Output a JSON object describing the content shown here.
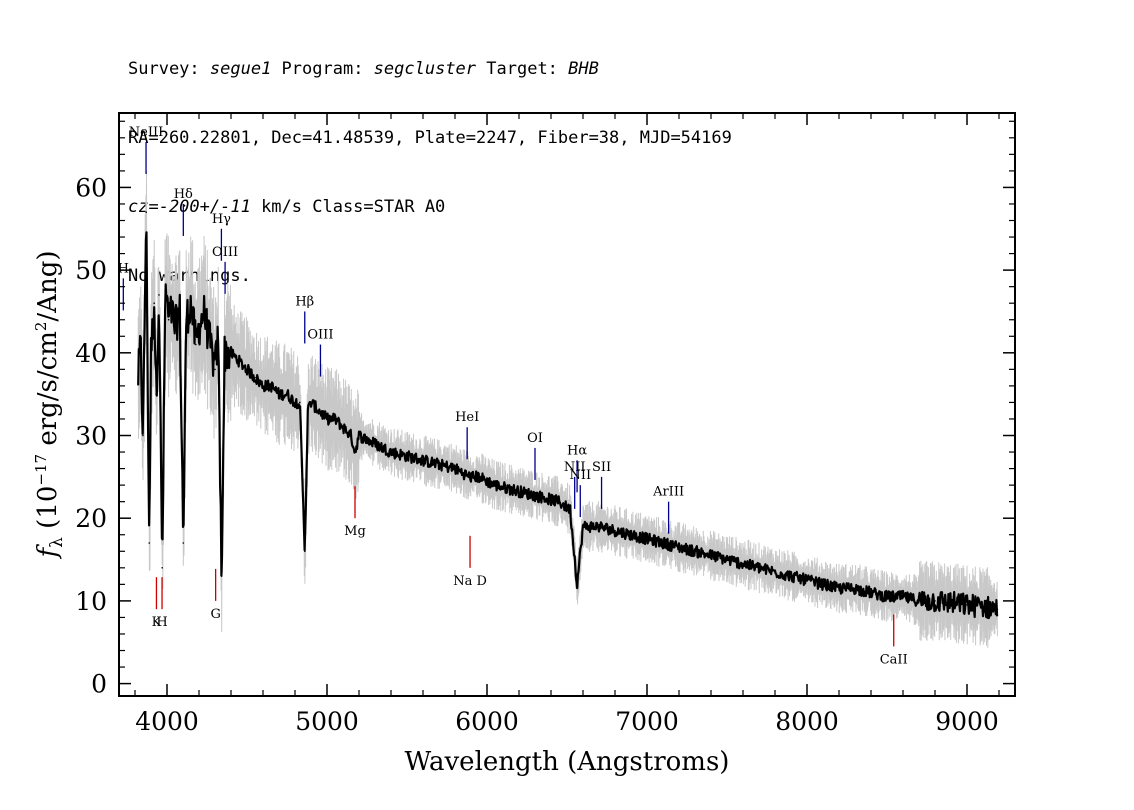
{
  "header": {
    "line1": {
      "survey_label": "Survey: ",
      "survey": "segue1",
      "program_label": " Program: ",
      "program": "segcluster",
      "target_label": " Target: ",
      "target": "BHB"
    },
    "line2": "RA=260.22801, Dec=41.48539, Plate=2247, Fiber=38, MJD=54169",
    "line3": {
      "cz": "cz=-200+/-11",
      "rest": " km/s Class=STAR A0"
    },
    "line4": "No warnings."
  },
  "chart_data": {
    "type": "line",
    "xlabel": "Wavelength (Angstroms)",
    "ylabel": "f_λ (10^-17 erg/s/cm²/Ang)",
    "xlim": [
      3700,
      9300
    ],
    "ylim": [
      -1.5,
      69
    ],
    "x_ticks": [
      4000,
      5000,
      6000,
      7000,
      8000,
      9000
    ],
    "y_ticks": [
      0,
      10,
      20,
      30,
      40,
      50,
      60
    ],
    "grid": false,
    "colors": {
      "spectrum": "#000000",
      "noise": "#c8c8c8",
      "emission": "#00008b",
      "absorption": "#cc0000"
    },
    "series": [
      {
        "values": [
          [
            3820,
            37
          ],
          [
            3835,
            41
          ],
          [
            3850,
            30
          ],
          [
            3870,
            57
          ],
          [
            3889,
            17
          ],
          [
            3900,
            40
          ],
          [
            3920,
            46
          ],
          [
            3933,
            35
          ],
          [
            3950,
            47
          ],
          [
            3970,
            14
          ],
          [
            3990,
            48
          ],
          [
            4010,
            44
          ],
          [
            4030,
            45
          ],
          [
            4050,
            43
          ],
          [
            4080,
            45
          ],
          [
            4102,
            17
          ],
          [
            4120,
            44
          ],
          [
            4150,
            46
          ],
          [
            4180,
            41
          ],
          [
            4200,
            43
          ],
          [
            4230,
            45
          ],
          [
            4260,
            42
          ],
          [
            4300,
            38
          ],
          [
            4320,
            42
          ],
          [
            4341,
            13
          ],
          [
            4360,
            40
          ],
          [
            4400,
            40
          ],
          [
            4450,
            39
          ],
          [
            4500,
            38
          ],
          [
            4550,
            37
          ],
          [
            4600,
            36
          ],
          [
            4650,
            36
          ],
          [
            4700,
            35
          ],
          [
            4750,
            35
          ],
          [
            4800,
            34
          ],
          [
            4830,
            34
          ],
          [
            4861,
            16
          ],
          [
            4880,
            33
          ],
          [
            4900,
            34
          ],
          [
            4950,
            33
          ],
          [
            5000,
            32
          ],
          [
            5050,
            32
          ],
          [
            5100,
            31
          ],
          [
            5150,
            30
          ],
          [
            5175,
            28
          ],
          [
            5200,
            30
          ],
          [
            5300,
            29
          ],
          [
            5400,
            28
          ],
          [
            5500,
            27.5
          ],
          [
            5600,
            27
          ],
          [
            5700,
            26.5
          ],
          [
            5800,
            26
          ],
          [
            5893,
            25
          ],
          [
            5950,
            25
          ],
          [
            6050,
            24
          ],
          [
            6150,
            23.5
          ],
          [
            6250,
            23
          ],
          [
            6350,
            22.5
          ],
          [
            6450,
            22
          ],
          [
            6520,
            21
          ],
          [
            6563,
            12
          ],
          [
            6600,
            19
          ],
          [
            6700,
            19
          ],
          [
            6800,
            18.5
          ],
          [
            6900,
            18
          ],
          [
            7000,
            17.5
          ],
          [
            7100,
            17
          ],
          [
            7200,
            16.5
          ],
          [
            7300,
            16
          ],
          [
            7400,
            15.5
          ],
          [
            7500,
            15
          ],
          [
            7600,
            14.5
          ],
          [
            7700,
            14
          ],
          [
            7800,
            13.5
          ],
          [
            7900,
            13
          ],
          [
            8000,
            12.5
          ],
          [
            8100,
            12
          ],
          [
            8200,
            11.5
          ],
          [
            8300,
            11.5
          ],
          [
            8400,
            11
          ],
          [
            8500,
            10.5
          ],
          [
            8600,
            10.5
          ],
          [
            8700,
            10
          ],
          [
            8800,
            10
          ],
          [
            8900,
            9.8
          ],
          [
            9000,
            9.5
          ],
          [
            9100,
            9.3
          ],
          [
            9190,
            9
          ]
        ]
      }
    ],
    "emission_lines": [
      {
        "name": "NeIII",
        "wavelength": 3869,
        "ytop": 65.5
      },
      {
        "name": "H",
        "wavelength": 3727,
        "ytop": 49
      },
      {
        "name": "Hδ",
        "wavelength": 4102,
        "ytop": 58
      },
      {
        "name": "Hγ",
        "wavelength": 4340,
        "ytop": 55
      },
      {
        "name": "OIII",
        "wavelength": 4363,
        "ytop": 51
      },
      {
        "name": "Hβ",
        "wavelength": 4861,
        "ytop": 45
      },
      {
        "name": "OIII",
        "wavelength": 4959,
        "ytop": 41
      },
      {
        "name": "HeI",
        "wavelength": 5876,
        "ytop": 31
      },
      {
        "name": "OI",
        "wavelength": 6300,
        "ytop": 28.5
      },
      {
        "name": "NII",
        "wavelength": 6548,
        "ytop": 25
      },
      {
        "name": "Hα",
        "wavelength": 6563,
        "ytop": 27
      },
      {
        "name": "NII",
        "wavelength": 6583,
        "ytop": 24
      },
      {
        "name": "SII",
        "wavelength": 6716,
        "ytop": 25
      },
      {
        "name": "ArIII",
        "wavelength": 7135,
        "ytop": 22
      }
    ],
    "absorption_lines": [
      {
        "name": "K",
        "wavelength": 3934,
        "ybottom": 9
      },
      {
        "name": "H",
        "wavelength": 3969,
        "ybottom": 9
      },
      {
        "name": "G",
        "wavelength": 4304,
        "ybottom": 10
      },
      {
        "name": "Mg",
        "wavelength": 5175,
        "ybottom": 20
      },
      {
        "name": "Na D",
        "wavelength": 5894,
        "ybottom": 14
      },
      {
        "name": "CaII",
        "wavelength": 8542,
        "ybottom": 4.5
      }
    ]
  }
}
